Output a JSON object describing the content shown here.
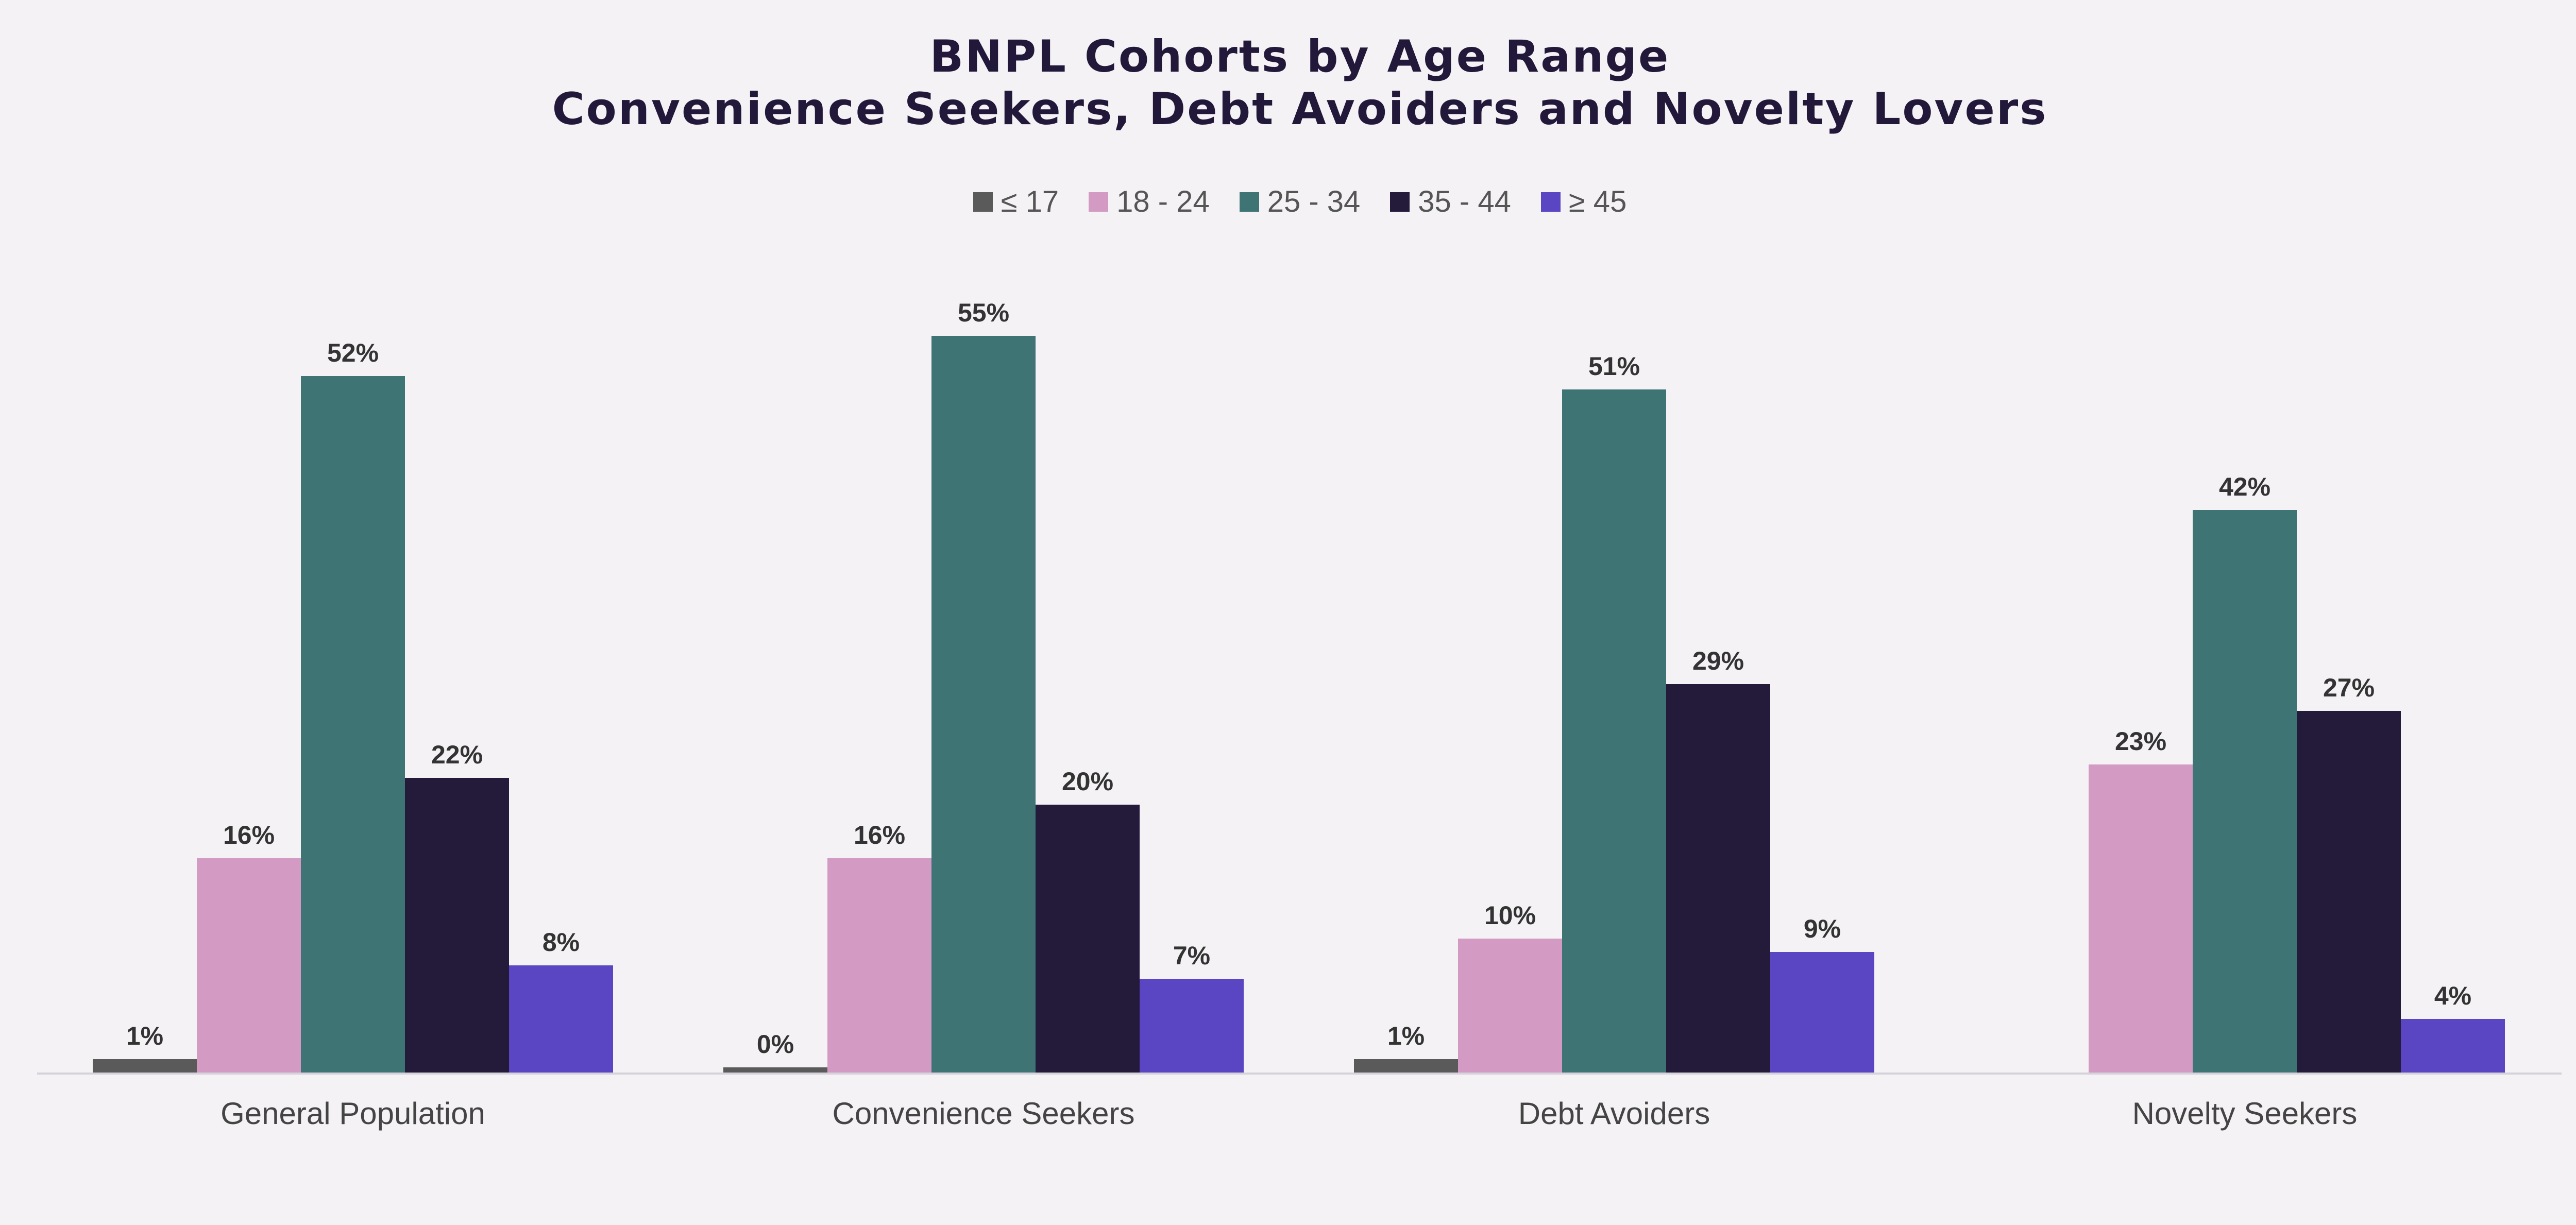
{
  "chart_data": {
    "type": "bar",
    "title": "BNPL Cohorts by Age Range",
    "subtitle": "Convenience Seekers, Debt Avoiders and Novelty Lovers",
    "categories": [
      "General Population",
      "Convenience Seekers",
      "Debt Avoiders",
      "Novelty Seekers"
    ],
    "series": [
      {
        "name": "≤ 17",
        "color": "#5a5a5a",
        "values": [
          1,
          0,
          1,
          null
        ],
        "labels": [
          "1%",
          "0%",
          "1%",
          ""
        ]
      },
      {
        "name": "18 - 24",
        "color": "#d39bc4",
        "values": [
          16,
          16,
          10,
          23
        ],
        "labels": [
          "16%",
          "16%",
          "10%",
          "23%"
        ]
      },
      {
        "name": "25 - 34",
        "color": "#3e7474",
        "values": [
          52,
          55,
          51,
          42
        ],
        "labels": [
          "52%",
          "55%",
          "51%",
          "42%"
        ]
      },
      {
        "name": "35 - 44",
        "color": "#241a3a",
        "values": [
          22,
          20,
          29,
          27
        ],
        "labels": [
          "22%",
          "20%",
          "29%",
          "27%"
        ]
      },
      {
        "name": "≥ 45",
        "color": "#5a45c2",
        "values": [
          8,
          7,
          9,
          4
        ],
        "labels": [
          "8%",
          "7%",
          "9%",
          "4%"
        ]
      }
    ],
    "ylim": [
      0,
      60
    ],
    "xlabel": "",
    "ylabel": "",
    "grid": false,
    "legend_position": "top"
  }
}
